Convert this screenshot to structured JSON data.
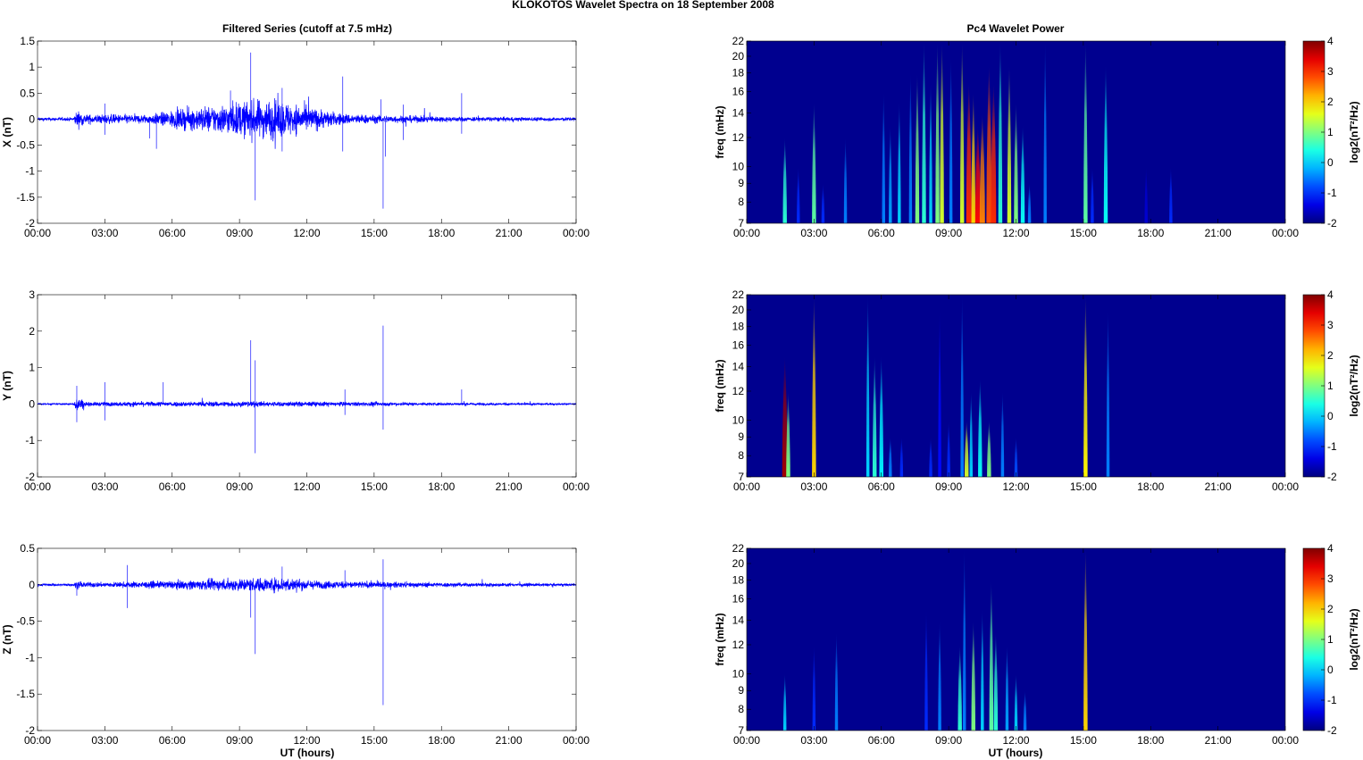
{
  "title": "KLOKOTOS Wavelet Spectra on 18 September 2008",
  "left_title": "Filtered Series (cutoff at 7.5 mHz)",
  "right_title": "Pc4 Wavelet Power",
  "xlabel": "UT (hours)",
  "freq_label": "freq (mHz)",
  "cbar_label": "log2(nT²/Hz)",
  "colors": {
    "series": "#0000ff",
    "background": "#00008f"
  },
  "chart_data": [
    {
      "type": "line",
      "ylabel": "X (nT)",
      "ylim": [
        -2,
        1.5
      ],
      "yticks": [
        "-2",
        "-1.5",
        "-1",
        "-0.5",
        "0",
        "0.5",
        "1",
        "1.5"
      ],
      "ytick_values": [
        -2,
        -1.5,
        -1,
        -0.5,
        0,
        0.5,
        1,
        1.5
      ],
      "xticks": [
        "00:00",
        "03:00",
        "06:00",
        "09:00",
        "12:00",
        "15:00",
        "18:00",
        "21:00",
        "00:00"
      ],
      "xlim_hours": [
        0,
        24
      ],
      "envelope": [
        [
          0,
          0.03
        ],
        [
          1.6,
          0.03
        ],
        [
          1.75,
          0.15
        ],
        [
          2.2,
          0.08
        ],
        [
          5,
          0.08
        ],
        [
          6,
          0.15
        ],
        [
          7.5,
          0.22
        ],
        [
          9,
          0.3
        ],
        [
          10.5,
          0.35
        ],
        [
          12,
          0.22
        ],
        [
          13.5,
          0.1
        ],
        [
          15,
          0.07
        ],
        [
          17,
          0.06
        ],
        [
          19,
          0.04
        ],
        [
          24,
          0.03
        ]
      ],
      "spikes": [
        [
          9.5,
          1.28
        ],
        [
          9.7,
          -1.56
        ],
        [
          13.6,
          0.82
        ],
        [
          13.6,
          -0.62
        ],
        [
          15.4,
          -1.72
        ],
        [
          15.3,
          0.38
        ],
        [
          15.5,
          -0.72
        ],
        [
          18.9,
          0.5
        ],
        [
          18.9,
          -0.28
        ],
        [
          10.9,
          0.6
        ],
        [
          10.9,
          -0.62
        ],
        [
          8.6,
          0.55
        ],
        [
          5.3,
          -0.57
        ],
        [
          5.0,
          -0.37
        ],
        [
          3.0,
          -0.3
        ],
        [
          3.0,
          0.3
        ],
        [
          16.3,
          -0.4
        ],
        [
          16.3,
          0.28
        ]
      ]
    },
    {
      "type": "line",
      "ylabel": "Y (nT)",
      "ylim": [
        -2,
        3
      ],
      "yticks": [
        "-2",
        "-1",
        "0",
        "1",
        "2",
        "3"
      ],
      "ytick_values": [
        -2,
        -1,
        0,
        1,
        2,
        3
      ],
      "xticks": [
        "00:00",
        "03:00",
        "06:00",
        "09:00",
        "12:00",
        "15:00",
        "18:00",
        "21:00",
        "00:00"
      ],
      "xlim_hours": [
        0,
        24
      ],
      "envelope": [
        [
          0,
          0.02
        ],
        [
          1.6,
          0.02
        ],
        [
          1.75,
          0.2
        ],
        [
          2.2,
          0.05
        ],
        [
          5,
          0.06
        ],
        [
          9,
          0.07
        ],
        [
          12,
          0.06
        ],
        [
          15,
          0.05
        ],
        [
          17,
          0.04
        ],
        [
          24,
          0.02
        ]
      ],
      "spikes": [
        [
          1.75,
          0.5
        ],
        [
          1.75,
          -0.5
        ],
        [
          3.0,
          0.6
        ],
        [
          3.0,
          -0.45
        ],
        [
          9.5,
          1.75
        ],
        [
          9.7,
          1.2
        ],
        [
          9.7,
          -1.35
        ],
        [
          15.4,
          2.15
        ],
        [
          15.4,
          -0.7
        ],
        [
          5.6,
          0.6
        ],
        [
          18.9,
          0.4
        ],
        [
          13.7,
          0.4
        ],
        [
          13.7,
          -0.3
        ]
      ]
    },
    {
      "type": "line",
      "ylabel": "Z (nT)",
      "ylim": [
        -2,
        0.5
      ],
      "yticks": [
        "-2",
        "-1.5",
        "-1",
        "-0.5",
        "0",
        "0.5"
      ],
      "ytick_values": [
        -2,
        -1.5,
        -1,
        -0.5,
        0,
        0.5
      ],
      "xticks": [
        "00:00",
        "03:00",
        "06:00",
        "09:00",
        "12:00",
        "15:00",
        "18:00",
        "21:00",
        "00:00"
      ],
      "xlim_hours": [
        0,
        24
      ],
      "envelope": [
        [
          0,
          0.015
        ],
        [
          1.6,
          0.015
        ],
        [
          1.75,
          0.05
        ],
        [
          2.2,
          0.03
        ],
        [
          5,
          0.04
        ],
        [
          7,
          0.06
        ],
        [
          9,
          0.08
        ],
        [
          11,
          0.09
        ],
        [
          12.5,
          0.05
        ],
        [
          15,
          0.04
        ],
        [
          17,
          0.03
        ],
        [
          24,
          0.015
        ]
      ],
      "spikes": [
        [
          4.0,
          0.27
        ],
        [
          4.0,
          -0.32
        ],
        [
          9.5,
          -0.45
        ],
        [
          9.7,
          -0.95
        ],
        [
          10.9,
          0.25
        ],
        [
          15.4,
          0.35
        ],
        [
          15.4,
          -1.65
        ],
        [
          13.7,
          0.2
        ],
        [
          1.75,
          -0.15
        ]
      ]
    },
    {
      "type": "heatmap",
      "ylabel": "freq (mHz)",
      "ylim": [
        7,
        22
      ],
      "yscale": "log",
      "yticks": [
        "7",
        "8",
        "9",
        "10",
        "12",
        "14",
        "16",
        "18",
        "20",
        "22"
      ],
      "ytick_values": [
        7,
        8,
        9,
        10,
        12,
        14,
        16,
        18,
        20,
        22
      ],
      "clim": [
        -2,
        4
      ],
      "cticks": [
        "-2",
        "-1",
        "0",
        "1",
        "2",
        "3",
        "4"
      ],
      "ctick_values": [
        -2,
        -1,
        0,
        1,
        2,
        3,
        4
      ],
      "xticks": [
        "00:00",
        "03:00",
        "06:00",
        "09:00",
        "12:00",
        "15:00",
        "18:00",
        "21:00",
        "00:00"
      ],
      "bursts_time_fmax_power": [
        [
          1.7,
          12,
          0.5
        ],
        [
          2.3,
          10,
          -1
        ],
        [
          3.0,
          15,
          0.8
        ],
        [
          3.4,
          9,
          -1
        ],
        [
          4.4,
          12,
          -0.5
        ],
        [
          6.1,
          16,
          -0.5
        ],
        [
          6.4,
          13,
          -0.3
        ],
        [
          6.8,
          15,
          0
        ],
        [
          7.3,
          18,
          -0.5
        ],
        [
          7.6,
          18,
          1
        ],
        [
          7.9,
          22,
          0.5
        ],
        [
          8.2,
          17,
          0
        ],
        [
          8.5,
          22,
          1
        ],
        [
          8.7,
          22,
          1.5
        ],
        [
          9.1,
          20,
          -0.5
        ],
        [
          9.6,
          22,
          1.5
        ],
        [
          9.9,
          17,
          3
        ],
        [
          10.1,
          16,
          2
        ],
        [
          10.3,
          13,
          3.2
        ],
        [
          10.5,
          14,
          2.5
        ],
        [
          10.8,
          19,
          2.8
        ],
        [
          11.0,
          17,
          3
        ],
        [
          11.3,
          22,
          0.5
        ],
        [
          11.7,
          19,
          1.5
        ],
        [
          12.0,
          15,
          1
        ],
        [
          12.3,
          13,
          0.3
        ],
        [
          12.6,
          9,
          -0.5
        ],
        [
          13.3,
          22,
          -0.5
        ],
        [
          15.1,
          22,
          0.8
        ],
        [
          15.4,
          10,
          -1
        ],
        [
          16.0,
          19,
          0.3
        ],
        [
          17.8,
          10,
          -1.5
        ],
        [
          18.9,
          10,
          -1
        ]
      ]
    },
    {
      "type": "heatmap",
      "ylabel": "freq (mHz)",
      "ylim": [
        7,
        22
      ],
      "yscale": "log",
      "yticks": [
        "7",
        "8",
        "9",
        "10",
        "12",
        "14",
        "16",
        "18",
        "20",
        "22"
      ],
      "ytick_values": [
        7,
        8,
        9,
        10,
        12,
        14,
        16,
        18,
        20,
        22
      ],
      "clim": [
        -2,
        4
      ],
      "cticks": [
        "-2",
        "-1",
        "0",
        "1",
        "2",
        "3",
        "4"
      ],
      "ctick_values": [
        -2,
        -1,
        0,
        1,
        2,
        3,
        4
      ],
      "xticks": [
        "00:00",
        "03:00",
        "06:00",
        "09:00",
        "12:00",
        "15:00",
        "18:00",
        "21:00",
        "00:00"
      ],
      "bursts_time_fmax_power": [
        [
          1.7,
          15,
          3.8
        ],
        [
          1.85,
          12,
          1
        ],
        [
          3.0,
          22,
          2
        ],
        [
          5.4,
          22,
          0
        ],
        [
          5.7,
          15,
          0.5
        ],
        [
          6.0,
          15,
          0.2
        ],
        [
          6.4,
          9,
          -0.5
        ],
        [
          6.9,
          9,
          -1
        ],
        [
          8.2,
          9,
          -1
        ],
        [
          8.6,
          20,
          -1.2
        ],
        [
          9.0,
          10,
          -1
        ],
        [
          9.6,
          22,
          -0.5
        ],
        [
          9.8,
          10,
          1.5
        ],
        [
          10.0,
          12,
          0
        ],
        [
          10.4,
          13,
          0.3
        ],
        [
          10.8,
          10,
          1
        ],
        [
          11.4,
          12,
          -0.5
        ],
        [
          12.0,
          9,
          -0.8
        ],
        [
          15.1,
          22,
          1.8
        ],
        [
          16.1,
          20,
          -0.5
        ]
      ]
    },
    {
      "type": "heatmap",
      "ylabel": "freq (mHz)",
      "ylim": [
        7,
        22
      ],
      "yscale": "log",
      "yticks": [
        "7",
        "8",
        "9",
        "10",
        "12",
        "14",
        "16",
        "18",
        "20",
        "22"
      ],
      "ytick_values": [
        7,
        8,
        9,
        10,
        12,
        14,
        16,
        18,
        20,
        22
      ],
      "clim": [
        -2,
        4
      ],
      "cticks": [
        "-2",
        "-1",
        "0",
        "1",
        "2",
        "3",
        "4"
      ],
      "ctick_values": [
        -2,
        -1,
        0,
        1,
        2,
        3,
        4
      ],
      "xticks": [
        "00:00",
        "03:00",
        "06:00",
        "09:00",
        "12:00",
        "15:00",
        "18:00",
        "21:00",
        "00:00"
      ],
      "bursts_time_fmax_power": [
        [
          1.7,
          10,
          0
        ],
        [
          3.0,
          12,
          -1
        ],
        [
          4.0,
          13,
          -0.5
        ],
        [
          8.0,
          15,
          -1
        ],
        [
          8.6,
          14,
          -0.5
        ],
        [
          9.5,
          12,
          0.5
        ],
        [
          9.7,
          22,
          -0.5
        ],
        [
          10.1,
          14,
          1
        ],
        [
          10.5,
          15,
          0
        ],
        [
          10.9,
          18,
          0.8
        ],
        [
          11.1,
          13,
          0.5
        ],
        [
          11.6,
          12,
          -0.3
        ],
        [
          12.0,
          10,
          0
        ],
        [
          12.4,
          9,
          -0.5
        ],
        [
          15.1,
          22,
          2
        ]
      ]
    }
  ]
}
